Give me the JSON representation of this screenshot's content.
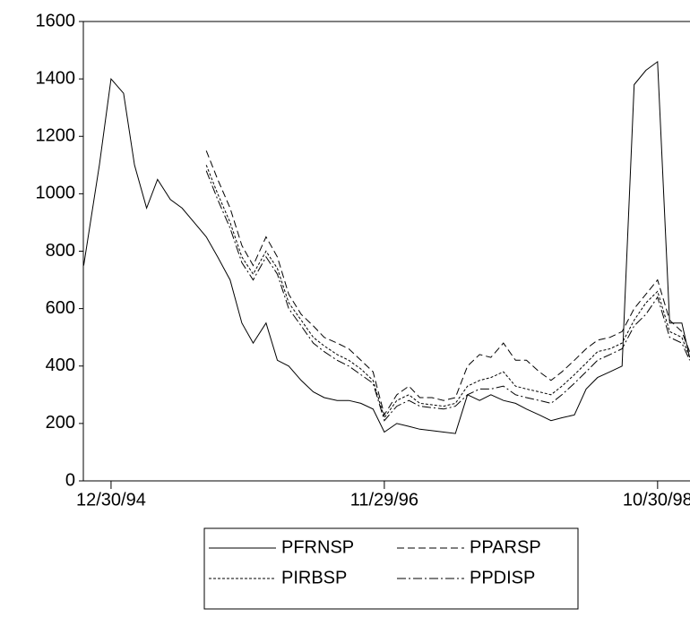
{
  "chart_data": {
    "type": "line",
    "x": [
      "10/21/94",
      "11/30/94",
      "12/30/94",
      "1/31/95",
      "2/28/95",
      "3/31/95",
      "4/28/95",
      "5/31/95",
      "6/30/95",
      "7/31/95",
      "8/31/95",
      "9/29/95",
      "10/31/95",
      "11/30/95",
      "12/29/95",
      "1/31/96",
      "2/29/96",
      "3/29/96",
      "4/30/96",
      "5/31/96",
      "6/28/96",
      "7/31/96",
      "8/30/96",
      "9/30/96",
      "10/31/96",
      "11/29/96",
      "12/31/96",
      "1/31/97",
      "2/28/97",
      "3/31/97",
      "4/30/97",
      "5/30/97",
      "6/30/97",
      "7/31/97",
      "8/29/97",
      "9/30/97",
      "10/31/97",
      "11/28/97",
      "12/31/97",
      "1/30/98",
      "2/27/98",
      "3/31/98",
      "4/30/98",
      "5/29/98",
      "6/30/98",
      "7/31/98",
      "8/31/98",
      "9/30/98",
      "10/30/98",
      "11/30/98",
      "12/31/98",
      "1/20/99"
    ],
    "series": [
      {
        "name": "PFRNSP",
        "color": "#000000",
        "dash": "none",
        "values": [
          750,
          1100,
          1400,
          1350,
          1100,
          950,
          1050,
          980,
          950,
          900,
          850,
          780,
          700,
          550,
          480,
          550,
          420,
          400,
          350,
          310,
          290,
          280,
          280,
          270,
          250,
          170,
          200,
          190,
          180,
          175,
          170,
          165,
          300,
          280,
          300,
          280,
          270,
          250,
          230,
          210,
          220,
          230,
          320,
          360,
          380,
          400,
          1380,
          1430,
          1460,
          550,
          550,
          430
        ]
      },
      {
        "name": "PPARSP",
        "color": "#000000",
        "dash": "8,4",
        "values": [
          null,
          null,
          null,
          null,
          null,
          null,
          null,
          null,
          null,
          null,
          1150,
          1050,
          950,
          820,
          750,
          850,
          780,
          650,
          580,
          540,
          500,
          480,
          460,
          420,
          380,
          230,
          300,
          330,
          290,
          290,
          280,
          290,
          400,
          440,
          430,
          480,
          420,
          420,
          380,
          350,
          380,
          420,
          460,
          490,
          500,
          520,
          600,
          650,
          700,
          560,
          520,
          450
        ]
      },
      {
        "name": "PIRBSP",
        "color": "#000000",
        "dash": "3,2",
        "values": [
          null,
          null,
          null,
          null,
          null,
          null,
          null,
          null,
          null,
          null,
          1100,
          1000,
          900,
          780,
          720,
          800,
          740,
          620,
          560,
          500,
          470,
          440,
          420,
          390,
          350,
          220,
          280,
          300,
          270,
          265,
          260,
          270,
          330,
          350,
          360,
          380,
          330,
          320,
          310,
          300,
          330,
          370,
          410,
          450,
          460,
          480,
          560,
          620,
          660,
          520,
          500,
          430
        ]
      },
      {
        "name": "PPDISP",
        "color": "#000000",
        "dash": "10,3,2,3",
        "values": [
          null,
          null,
          null,
          null,
          null,
          null,
          null,
          null,
          null,
          null,
          1080,
          980,
          880,
          760,
          700,
          780,
          720,
          600,
          540,
          480,
          450,
          420,
          400,
          370,
          340,
          210,
          260,
          280,
          260,
          255,
          250,
          260,
          300,
          320,
          320,
          330,
          300,
          290,
          280,
          270,
          300,
          340,
          380,
          420,
          440,
          460,
          540,
          580,
          640,
          500,
          480,
          420
        ]
      }
    ],
    "xlim": [
      "10/20/94",
      "1/21/99"
    ],
    "xticks": [
      "12/30/94",
      "11/29/96",
      "10/30/98"
    ],
    "ylim": [
      0,
      1600
    ],
    "yticks": [
      0,
      200,
      400,
      600,
      800,
      1000,
      1200,
      1400,
      1600
    ]
  }
}
